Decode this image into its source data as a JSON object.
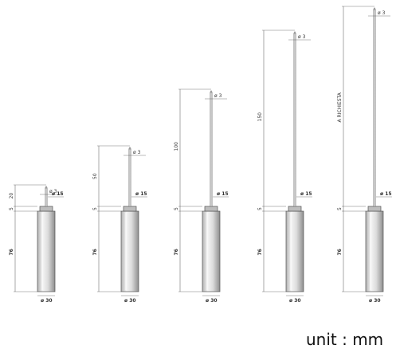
{
  "unit_label": "unit : mm",
  "probes": [
    {
      "length_label": "20",
      "tip_dia": "ø 3",
      "collar_dia": "ø 15",
      "collar_h": "5",
      "body_h": "76",
      "body_dia": "ø 30"
    },
    {
      "length_label": "50",
      "tip_dia": "ø 3",
      "collar_dia": "ø 15",
      "collar_h": "5",
      "body_h": "76",
      "body_dia": "ø 30"
    },
    {
      "length_label": "100",
      "tip_dia": "ø 3",
      "collar_dia": "ø 15",
      "collar_h": "5",
      "body_h": "76",
      "body_dia": "ø 30"
    },
    {
      "length_label": "150",
      "tip_dia": "ø 3",
      "collar_dia": "ø 15",
      "collar_h": "5",
      "body_h": "76",
      "body_dia": "ø 30"
    },
    {
      "length_label": "A RICHIESTA",
      "tip_dia": "ø 3",
      "collar_dia": "ø 15",
      "collar_h": "5",
      "body_h": "76",
      "body_dia": "ø 30"
    }
  ],
  "colors": {
    "line": "#555555",
    "body_light": "#f2f2f2",
    "body_dark": "#9a9a9a"
  }
}
